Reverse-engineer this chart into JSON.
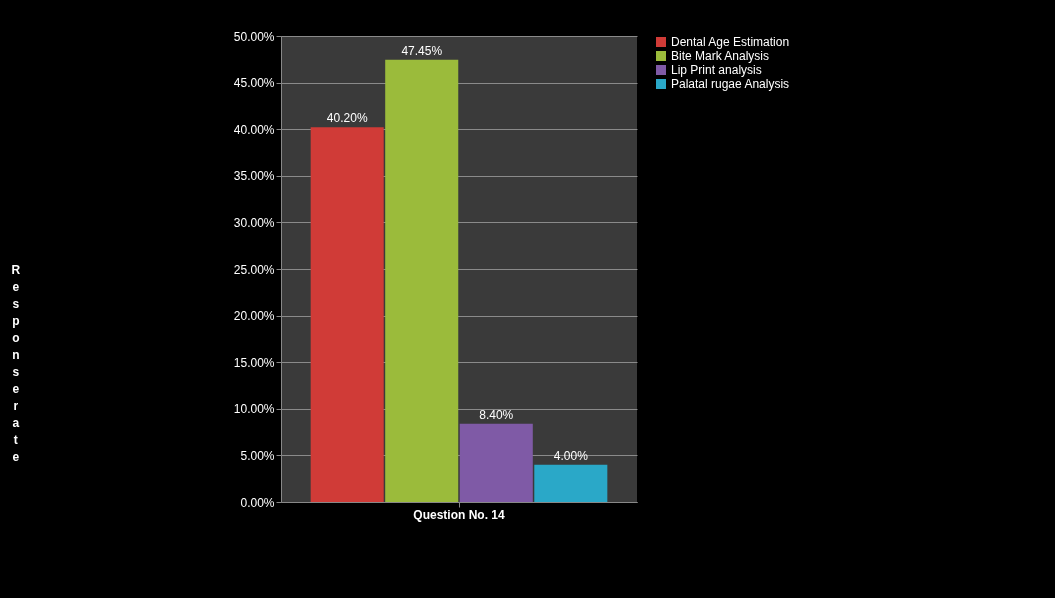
{
  "chart_data": {
    "type": "bar",
    "ylabel": "Response rate",
    "categories": [
      "Question No. 14"
    ],
    "series": [
      {
        "name": "Dental Age Estimation",
        "color": "#d03b37",
        "values": [
          40.2
        ],
        "value_labels": [
          "40.20%"
        ]
      },
      {
        "name": "Bite Mark Analysis",
        "color": "#9bbb3b",
        "values": [
          47.45
        ],
        "value_labels": [
          "47.45%"
        ]
      },
      {
        "name": "Lip Print analysis",
        "color": "#7f5aa6",
        "values": [
          8.4
        ],
        "value_labels": [
          "8.40%"
        ]
      },
      {
        "name": "Palatal rugae Analysis",
        "color": "#2aa8c8",
        "values": [
          4.0
        ],
        "value_labels": [
          "4.00%"
        ]
      }
    ],
    "ylim": [
      0,
      50
    ],
    "yticks": [
      {
        "value": 0,
        "label": "0.00%"
      },
      {
        "value": 5,
        "label": "5.00%"
      },
      {
        "value": 10,
        "label": "10.00%"
      },
      {
        "value": 15,
        "label": "15.00%"
      },
      {
        "value": 20,
        "label": "20.00%"
      },
      {
        "value": 25,
        "label": "25.00%"
      },
      {
        "value": 30,
        "label": "30.00%"
      },
      {
        "value": 35,
        "label": "35.00%"
      },
      {
        "value": 40,
        "label": "40.00%"
      },
      {
        "value": 45,
        "label": "45.00%"
      },
      {
        "value": 50,
        "label": "50.00%"
      }
    ],
    "grid": true,
    "legend": "right"
  }
}
